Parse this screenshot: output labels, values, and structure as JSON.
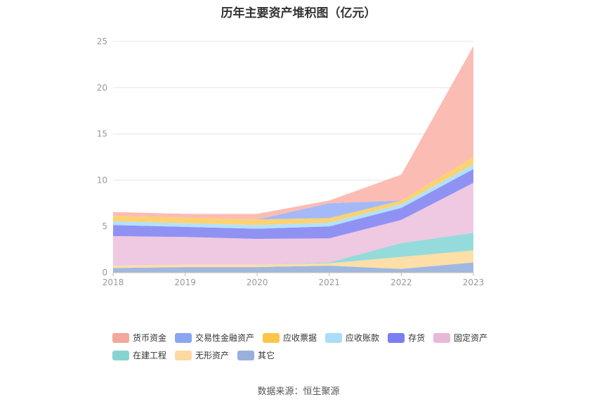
{
  "chart_data": {
    "type": "area",
    "stacked": true,
    "title": "历年主要资产堆积图（亿元）",
    "x": [
      "2018",
      "2019",
      "2020",
      "2021",
      "2022",
      "2023"
    ],
    "ylim": [
      0,
      25
    ],
    "yticks": [
      0,
      5,
      10,
      15,
      20,
      25
    ],
    "grid": true,
    "legend_position": "bottom",
    "series": [
      {
        "name": "其它",
        "color": "#9bb4dd",
        "values": [
          0.5,
          0.6,
          0.6,
          0.75,
          0.4,
          1.1
        ]
      },
      {
        "name": "无形资产",
        "color": "#fddda2",
        "values": [
          0.25,
          0.25,
          0.25,
          0.25,
          1.3,
          1.3
        ]
      },
      {
        "name": "在建工程",
        "color": "#8fd9d9",
        "values": [
          0.0,
          0.0,
          0.0,
          0.1,
          1.5,
          1.9
        ]
      },
      {
        "name": "固定资产",
        "color": "#eec5e0",
        "values": [
          3.2,
          3.0,
          2.8,
          2.6,
          2.5,
          5.4
        ]
      },
      {
        "name": "存货",
        "color": "#8a8cf2",
        "values": [
          1.2,
          1.1,
          1.1,
          1.3,
          1.3,
          1.5
        ]
      },
      {
        "name": "应收账款",
        "color": "#aedffc",
        "values": [
          0.4,
          0.4,
          0.4,
          0.4,
          0.4,
          0.5
        ]
      },
      {
        "name": "应收票据",
        "color": "#fcd06a",
        "values": [
          0.6,
          0.6,
          0.6,
          0.5,
          0.4,
          0.8
        ]
      },
      {
        "name": "交易性金融资产",
        "color": "#9fb5f7",
        "values": [
          0.0,
          0.0,
          0.0,
          1.6,
          0.0,
          0.0
        ]
      },
      {
        "name": "货币资金",
        "color": "#fbb8b0",
        "values": [
          0.4,
          0.4,
          0.6,
          0.3,
          2.8,
          12.0
        ]
      }
    ]
  },
  "legend_order": [
    "货币资金",
    "交易性金融资产",
    "应收票据",
    "应收账款",
    "存货",
    "固定资产",
    "在建工程",
    "无形资产",
    "其它"
  ],
  "legend_colors": [
    "#f4a79d",
    "#8aa5f2",
    "#fbc64a",
    "#a9ddf9",
    "#7b7ef0",
    "#e8b8d8",
    "#86d4d2",
    "#fcd9a0",
    "#97b0dc"
  ],
  "source": "数据来源：恒生聚源"
}
